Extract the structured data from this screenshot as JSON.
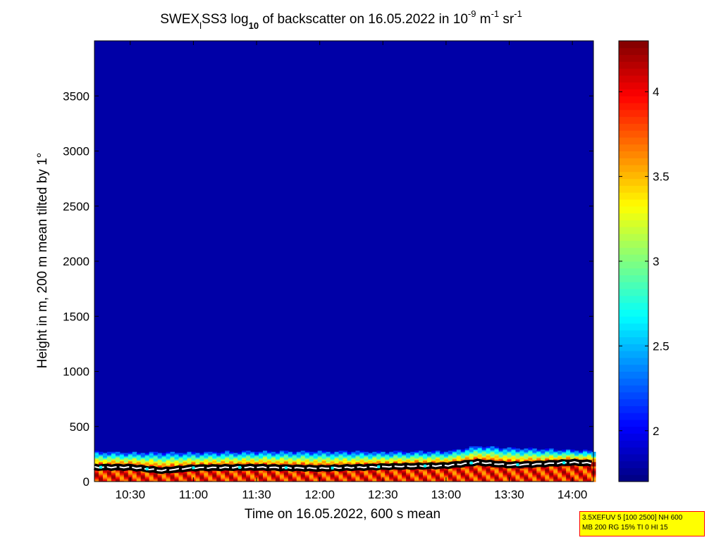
{
  "title": {
    "main": "SWEX",
    "sub1": "l",
    "part2": "SS3 log",
    "sub2": "10",
    "part3": " of backscatter on 16.05.2022 in 10",
    "sup1": "-9",
    "part4": " m",
    "sup2": "-1",
    "part5": " sr",
    "sup3": "-1"
  },
  "xlabel": "Time on 16.05.2022, 600 s mean",
  "ylabel": "Height in m, 200 m mean tilted by 1°",
  "info_box": {
    "line1": "3.5XEFUV 5 [100 2500] NH 600",
    "line2": "MB 200 RG 15% TI 0 HI 15"
  },
  "colors": {
    "background_field": "#00008f",
    "boundary_line": "#ffffff",
    "info_box_fill": "#ffff00",
    "info_box_border": "#ff0000"
  },
  "chart_data": {
    "type": "heatmap",
    "colormap": "jet",
    "x_range": [
      "10:13",
      "14:10"
    ],
    "x_ticks": [
      "10:30",
      "11:00",
      "11:30",
      "12:00",
      "12:30",
      "13:00",
      "13:30",
      "14:00"
    ],
    "y_range": [
      0,
      4000
    ],
    "y_ticks": [
      0,
      500,
      1000,
      1500,
      2000,
      2500,
      3000,
      3500
    ],
    "colorbar": {
      "range": [
        1.7,
        4.3
      ],
      "ticks": [
        2,
        2.5,
        3,
        3.5,
        4
      ],
      "tick_labels": [
        "2",
        "2.5",
        "3",
        "3.5",
        "4"
      ]
    },
    "background_value": 1.8,
    "aerosol_layer_top_m": [
      {
        "t": "10:13",
        "h": 265
      },
      {
        "t": "10:30",
        "h": 260
      },
      {
        "t": "11:00",
        "h": 260
      },
      {
        "t": "11:30",
        "h": 270
      },
      {
        "t": "12:00",
        "h": 270
      },
      {
        "t": "12:30",
        "h": 265
      },
      {
        "t": "13:00",
        "h": 270
      },
      {
        "t": "13:15",
        "h": 320
      },
      {
        "t": "13:30",
        "h": 300
      },
      {
        "t": "13:45",
        "h": 290
      },
      {
        "t": "14:00",
        "h": 280
      },
      {
        "t": "14:10",
        "h": 270
      }
    ],
    "boundary_height_m": [
      {
        "t": "10:13",
        "h": 130
      },
      {
        "t": "10:30",
        "h": 130
      },
      {
        "t": "10:45",
        "h": 100
      },
      {
        "t": "11:00",
        "h": 125
      },
      {
        "t": "11:30",
        "h": 130
      },
      {
        "t": "12:00",
        "h": 120
      },
      {
        "t": "12:30",
        "h": 135
      },
      {
        "t": "13:00",
        "h": 145
      },
      {
        "t": "13:15",
        "h": 175
      },
      {
        "t": "13:30",
        "h": 150
      },
      {
        "t": "13:45",
        "h": 160
      },
      {
        "t": "14:00",
        "h": 175
      },
      {
        "t": "14:10",
        "h": 165
      }
    ],
    "title": "SWEXlSS3 log10 of backscatter on 16.05.2022 in 10-9 m-1 sr-1",
    "xlabel": "Time on 16.05.2022, 600 s mean",
    "ylabel": "Height in m, 200 m mean tilted by 1°",
    "grid": false,
    "legend": "colorbar right"
  }
}
